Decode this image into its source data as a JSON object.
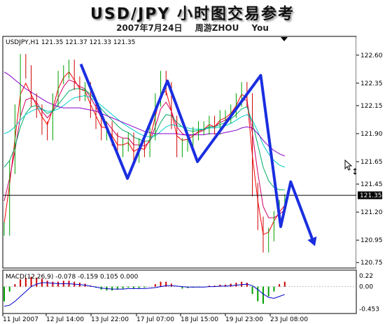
{
  "title": "USD/JPY 小时图交易参考",
  "subtitle": "2007年7月24日   周游ZHOU You",
  "chart_data": {
    "type": "line",
    "symbol_header": "USDJPY,H1  121.35 121.37 121.33 121.35",
    "current_price_label": "121.35",
    "current_price": 121.35,
    "y_ticks": [
      "122.60",
      "122.35",
      "122.15",
      "121.90",
      "121.65",
      "121.45",
      "121.20",
      "120.95",
      "120.75"
    ],
    "ylim": [
      120.72,
      122.68
    ],
    "x_ticks": [
      "11 Jul 2007",
      "12 Jul 14:00",
      "13 Jul 22:00",
      "17 Jul 07:00",
      "18 Jul 15:00",
      "19 Jul 23:00",
      "23 Jul 08:00"
    ],
    "price_series": [
      121.05,
      121.6,
      122.1,
      122.55,
      122.45,
      122.2,
      122.1,
      121.95,
      121.9,
      122.2,
      122.4,
      122.45,
      122.5,
      122.35,
      122.25,
      122.3,
      122.1,
      122.0,
      121.9,
      121.95,
      121.85,
      121.75,
      121.8,
      121.85,
      121.7,
      121.8,
      121.75,
      121.9,
      122.2,
      122.4,
      122.3,
      122.0,
      121.75,
      121.8,
      121.85,
      121.9,
      121.95,
      121.95,
      122.0,
      121.95,
      122.05,
      122.05,
      122.1,
      122.2,
      122.3,
      122.2,
      121.4,
      121.1,
      120.9,
      121.0,
      121.15,
      121.25,
      121.3
    ],
    "zigzag_line": [
      [
        0.115,
        122.52
      ],
      [
        0.185,
        121.5
      ],
      [
        0.245,
        122.37
      ],
      [
        0.29,
        121.65
      ],
      [
        0.385,
        122.42
      ],
      [
        0.415,
        121.07
      ],
      [
        0.43,
        121.47
      ],
      [
        0.465,
        120.92
      ]
    ],
    "series": [
      {
        "name": "",
        "color": "#ff0000",
        "values": [
          121.1,
          121.45,
          121.85,
          122.25,
          122.35,
          122.25,
          122.15,
          122.05,
          121.98,
          122.12,
          122.3,
          122.4,
          122.45,
          122.38,
          122.3,
          122.28,
          122.16,
          122.06,
          121.96,
          121.95,
          121.88,
          121.8,
          121.8,
          121.82,
          121.74,
          121.77,
          121.76,
          121.85,
          122.05,
          122.25,
          122.28,
          122.1,
          121.88,
          121.84,
          121.85,
          121.88,
          121.92,
          121.94,
          121.98,
          121.96,
          122.02,
          122.04,
          122.08,
          122.15,
          122.25,
          122.22,
          121.7,
          121.3,
          121.0,
          121.02,
          121.12,
          121.2,
          121.26
        ]
      },
      {
        "name": "",
        "color": "#cc0066",
        "values": [
          121.3,
          121.5,
          121.75,
          122.05,
          122.2,
          122.22,
          122.18,
          122.1,
          122.04,
          122.1,
          122.22,
          122.32,
          122.38,
          122.36,
          122.32,
          122.3,
          122.22,
          122.14,
          122.04,
          122.0,
          121.94,
          121.88,
          121.86,
          121.86,
          121.8,
          121.8,
          121.79,
          121.83,
          121.96,
          122.12,
          122.18,
          122.1,
          121.96,
          121.9,
          121.88,
          121.89,
          121.91,
          121.93,
          121.96,
          121.96,
          122.0,
          122.02,
          122.06,
          122.12,
          122.2,
          122.2,
          121.9,
          121.55,
          121.25,
          121.15,
          121.15,
          121.18,
          121.22
        ]
      },
      {
        "name": "",
        "color": "#00aa66",
        "values": [
          121.6,
          121.66,
          121.78,
          121.96,
          122.08,
          122.14,
          122.15,
          122.12,
          122.08,
          122.1,
          122.16,
          122.22,
          122.28,
          122.3,
          122.3,
          122.29,
          122.25,
          122.19,
          122.12,
          122.07,
          122.02,
          121.97,
          121.93,
          121.91,
          121.87,
          121.85,
          121.83,
          121.84,
          121.9,
          122.0,
          122.07,
          122.06,
          122.0,
          121.96,
          121.93,
          121.92,
          121.93,
          121.94,
          121.96,
          121.96,
          121.98,
          122.0,
          122.03,
          122.07,
          122.12,
          122.14,
          122.0,
          121.8,
          121.6,
          121.48,
          121.42,
          121.4,
          121.4
        ]
      },
      {
        "name": "",
        "color": "#00cccc",
        "values": [
          121.9,
          121.92,
          121.96,
          122.02,
          122.07,
          122.1,
          122.12,
          122.12,
          122.1,
          122.1,
          122.12,
          122.15,
          122.19,
          122.22,
          122.23,
          122.24,
          122.22,
          122.19,
          122.15,
          122.11,
          122.07,
          122.03,
          121.99,
          121.96,
          121.93,
          121.9,
          121.88,
          121.87,
          121.88,
          121.92,
          121.96,
          121.98,
          121.97,
          121.96,
          121.95,
          121.94,
          121.94,
          121.94,
          121.95,
          121.95,
          121.96,
          121.97,
          121.99,
          122.02,
          122.05,
          122.07,
          122.02,
          121.92,
          121.8,
          121.72,
          121.66,
          121.62,
          121.6
        ]
      },
      {
        "name": "",
        "color": "#8800cc",
        "values": [
          122.45,
          122.42,
          122.38,
          122.34,
          122.3,
          122.27,
          122.24,
          122.21,
          122.18,
          122.16,
          122.14,
          122.13,
          122.13,
          122.13,
          122.13,
          122.12,
          122.11,
          122.1,
          122.08,
          122.06,
          122.04,
          122.02,
          122.0,
          121.98,
          121.96,
          121.94,
          121.92,
          121.91,
          121.9,
          121.9,
          121.9,
          121.9,
          121.9,
          121.89,
          121.89,
          121.89,
          121.89,
          121.89,
          121.9,
          121.9,
          121.9,
          121.91,
          121.92,
          121.93,
          121.95,
          121.96,
          121.95,
          121.9,
          121.84,
          121.79,
          121.75,
          121.72,
          121.7
        ]
      }
    ],
    "macd": {
      "label": "MACD(12,26,9) -0.078 -0.159 0.105 0.000",
      "y_ticks": [
        "0.22",
        "0.00",
        "-0.453"
      ],
      "ylim": [
        -0.52,
        0.28
      ],
      "histogram": [
        -0.3,
        -0.1,
        0.05,
        0.15,
        0.18,
        0.2,
        0.18,
        0.16,
        0.12,
        0.1,
        0.1,
        0.12,
        0.12,
        0.1,
        0.08,
        0.06,
        0.02,
        -0.02,
        -0.06,
        -0.08,
        -0.08,
        -0.06,
        -0.04,
        -0.02,
        -0.04,
        -0.03,
        -0.02,
        0.0,
        0.05,
        0.1,
        0.1,
        0.06,
        0.0,
        -0.04,
        -0.03,
        -0.02,
        -0.01,
        0.0,
        0.02,
        0.02,
        0.04,
        0.04,
        0.06,
        0.08,
        0.1,
        0.08,
        -0.15,
        -0.3,
        -0.35,
        -0.2,
        -0.1,
        0.05,
        0.1
      ],
      "signal": [
        -0.4,
        -0.38,
        -0.3,
        -0.2,
        -0.1,
        0.0,
        0.05,
        0.08,
        0.08,
        0.07,
        0.06,
        0.06,
        0.06,
        0.05,
        0.04,
        0.03,
        0.01,
        -0.01,
        -0.03,
        -0.04,
        -0.05,
        -0.05,
        -0.05,
        -0.04,
        -0.04,
        -0.04,
        -0.04,
        -0.03,
        -0.02,
        0.0,
        0.02,
        0.02,
        0.01,
        0.0,
        -0.01,
        -0.01,
        -0.01,
        -0.01,
        0.0,
        0.0,
        0.01,
        0.01,
        0.02,
        0.03,
        0.04,
        0.05,
        0.02,
        -0.06,
        -0.15,
        -0.22,
        -0.24,
        -0.2,
        -0.16
      ]
    }
  }
}
